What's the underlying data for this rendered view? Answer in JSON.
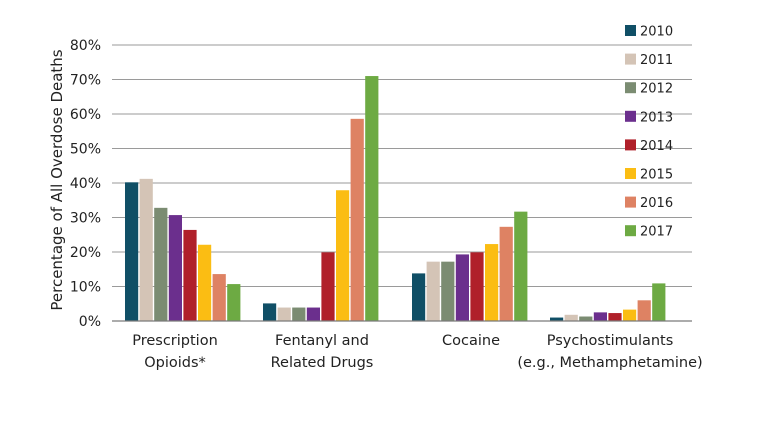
{
  "chart_data": {
    "type": "bar",
    "title": "",
    "xlabel": "",
    "ylabel": "Percentage of All Overdose Deaths",
    "ylim": [
      0,
      80
    ],
    "yticks": [
      "0%",
      "10%",
      "20%",
      "30%",
      "40%",
      "50%",
      "60%",
      "70%",
      "80%"
    ],
    "categories": [
      [
        "Prescription",
        "Opioids*"
      ],
      [
        "Fentanyl and",
        "Related Drugs"
      ],
      [
        "Cocaine"
      ],
      [
        "Psychostimulants",
        "(e.g., Methamphetamine)"
      ]
    ],
    "series": [
      {
        "name": "2010",
        "color": "#104f66",
        "values": [
          40.2,
          5.1,
          13.8,
          1.0
        ]
      },
      {
        "name": "2011",
        "color": "#d4c4b6",
        "values": [
          41.2,
          3.9,
          17.2,
          1.8
        ]
      },
      {
        "name": "2012",
        "color": "#7b8c72",
        "values": [
          32.8,
          3.9,
          17.2,
          1.3
        ]
      },
      {
        "name": "2013",
        "color": "#6b2f8d",
        "values": [
          30.7,
          3.9,
          19.3,
          2.5
        ]
      },
      {
        "name": "2014",
        "color": "#b0202a",
        "values": [
          26.4,
          19.9,
          19.9,
          2.3
        ]
      },
      {
        "name": "2015",
        "color": "#fbbd13",
        "values": [
          22.1,
          37.9,
          22.3,
          3.3
        ]
      },
      {
        "name": "2016",
        "color": "#de8263",
        "values": [
          13.6,
          58.6,
          27.3,
          6.0
        ]
      },
      {
        "name": "2017",
        "color": "#6daa43",
        "values": [
          10.7,
          71.0,
          31.7,
          10.9
        ]
      }
    ],
    "grid": true,
    "legend": "top-right"
  }
}
